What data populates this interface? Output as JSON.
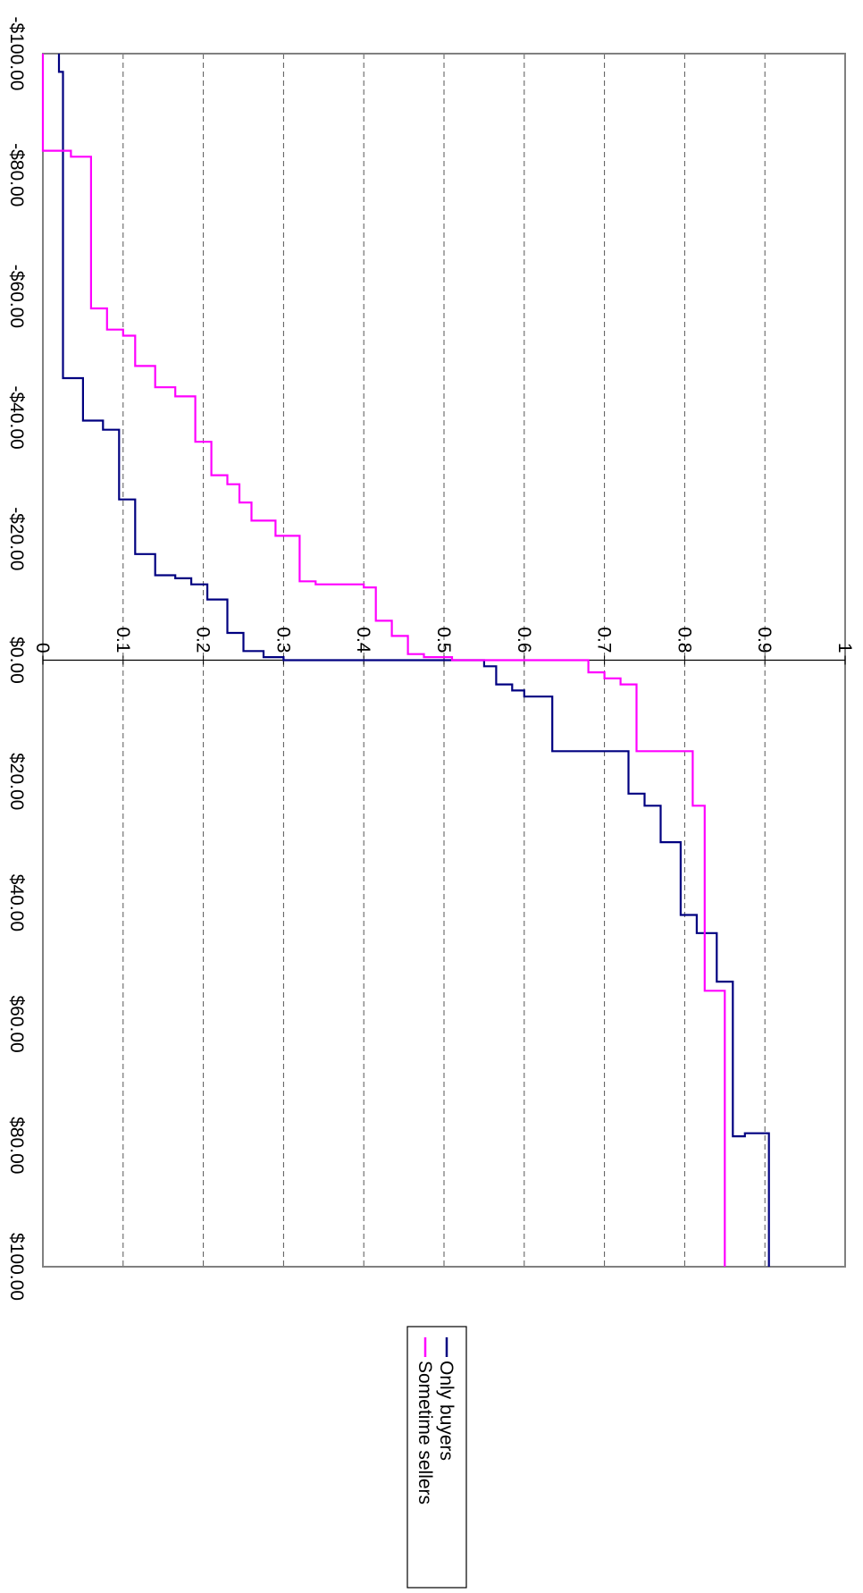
{
  "chart_data": {
    "type": "line",
    "orientation": "rotated 90 degrees clockwise",
    "x_ticks": [
      "-$100.00",
      "-$80.00",
      "-$60.00",
      "-$40.00",
      "-$20.00",
      "$0.00",
      "$20.00",
      "$40.00",
      "$60.00",
      "$80.00",
      "$100.00"
    ],
    "x_tick_values": [
      -100,
      -80,
      -60,
      -40,
      -20,
      0,
      20,
      40,
      60,
      80,
      100
    ],
    "y_ticks": [
      "0",
      "0.1",
      "0.2",
      "0.3",
      "0.4",
      "0.5",
      "0.6",
      "0.7",
      "0.8",
      "0.9",
      "1"
    ],
    "y_tick_values": [
      0,
      0.1,
      0.2,
      0.3,
      0.4,
      0.5,
      0.6,
      0.7,
      0.8,
      0.9,
      1
    ],
    "xlim": [
      -100,
      100
    ],
    "ylim": [
      0,
      1
    ],
    "grid": "dashed gridlines at y = 0.1 to 0.9",
    "legend_position": "right",
    "series": [
      {
        "name": "Only buyers",
        "color": "#000080",
        "points": [
          [
            -100,
            0.02
          ],
          [
            -97,
            0.02
          ],
          [
            -97,
            0.025
          ],
          [
            -46.5,
            0.025
          ],
          [
            -46.5,
            0.05
          ],
          [
            -39.5,
            0.05
          ],
          [
            -39.5,
            0.075
          ],
          [
            -38,
            0.075
          ],
          [
            -38,
            0.095
          ],
          [
            -26.5,
            0.095
          ],
          [
            -26.5,
            0.115
          ],
          [
            -17.5,
            0.115
          ],
          [
            -17.5,
            0.14
          ],
          [
            -14,
            0.14
          ],
          [
            -14,
            0.165
          ],
          [
            -13.5,
            0.165
          ],
          [
            -13.5,
            0.185
          ],
          [
            -12.5,
            0.185
          ],
          [
            -12.5,
            0.205
          ],
          [
            -10,
            0.205
          ],
          [
            -10,
            0.23
          ],
          [
            -4.5,
            0.23
          ],
          [
            -4.5,
            0.25
          ],
          [
            -1.5,
            0.25
          ],
          [
            -1.5,
            0.275
          ],
          [
            -0.5,
            0.275
          ],
          [
            -0.5,
            0.3
          ],
          [
            0,
            0.3
          ],
          [
            0,
            0.55
          ],
          [
            1,
            0.55
          ],
          [
            1,
            0.565
          ],
          [
            4,
            0.565
          ],
          [
            4,
            0.585
          ],
          [
            5,
            0.585
          ],
          [
            5,
            0.6
          ],
          [
            6,
            0.6
          ],
          [
            6,
            0.635
          ],
          [
            15,
            0.635
          ],
          [
            15,
            0.73
          ],
          [
            22,
            0.73
          ],
          [
            22,
            0.75
          ],
          [
            24,
            0.75
          ],
          [
            24,
            0.77
          ],
          [
            30,
            0.77
          ],
          [
            30,
            0.795
          ],
          [
            42,
            0.795
          ],
          [
            42,
            0.815
          ],
          [
            45,
            0.815
          ],
          [
            45,
            0.84
          ],
          [
            53,
            0.84
          ],
          [
            53,
            0.86
          ],
          [
            78.5,
            0.86
          ],
          [
            78.5,
            0.875
          ],
          [
            78,
            0.875
          ],
          [
            78,
            0.905
          ],
          [
            100,
            0.905
          ]
        ]
      },
      {
        "name": "Sometime sellers",
        "color": "#ff00ff",
        "points": [
          [
            -100,
            0
          ],
          [
            -84,
            0
          ],
          [
            -84,
            0.035
          ],
          [
            -83,
            0.035
          ],
          [
            -83,
            0.06
          ],
          [
            -58,
            0.06
          ],
          [
            -58,
            0.08
          ],
          [
            -54.5,
            0.08
          ],
          [
            -54.5,
            0.1
          ],
          [
            -53.5,
            0.1
          ],
          [
            -53.5,
            0.115
          ],
          [
            -48.5,
            0.115
          ],
          [
            -48.5,
            0.14
          ],
          [
            -45,
            0.14
          ],
          [
            -45,
            0.165
          ],
          [
            -43.5,
            0.165
          ],
          [
            -43.5,
            0.19
          ],
          [
            -36,
            0.19
          ],
          [
            -36,
            0.21
          ],
          [
            -30.5,
            0.21
          ],
          [
            -30.5,
            0.23
          ],
          [
            -29,
            0.23
          ],
          [
            -29,
            0.245
          ],
          [
            -26,
            0.245
          ],
          [
            -26,
            0.26
          ],
          [
            -23,
            0.26
          ],
          [
            -23,
            0.29
          ],
          [
            -20.5,
            0.29
          ],
          [
            -20.5,
            0.32
          ],
          [
            -13,
            0.32
          ],
          [
            -13,
            0.34
          ],
          [
            -12.5,
            0.34
          ],
          [
            -12.5,
            0.4
          ],
          [
            -12,
            0.4
          ],
          [
            -12,
            0.415
          ],
          [
            -6.5,
            0.415
          ],
          [
            -6.5,
            0.435
          ],
          [
            -4,
            0.435
          ],
          [
            -4,
            0.455
          ],
          [
            -1,
            0.455
          ],
          [
            -1,
            0.475
          ],
          [
            -0.5,
            0.475
          ],
          [
            -0.5,
            0.51
          ],
          [
            0,
            0.51
          ],
          [
            0,
            0.68
          ],
          [
            2,
            0.68
          ],
          [
            2,
            0.7
          ],
          [
            3,
            0.7
          ],
          [
            3,
            0.72
          ],
          [
            4,
            0.72
          ],
          [
            4,
            0.74
          ],
          [
            15,
            0.74
          ],
          [
            15,
            0.81
          ],
          [
            24,
            0.81
          ],
          [
            24,
            0.825
          ],
          [
            54.5,
            0.825
          ],
          [
            54.5,
            0.85
          ],
          [
            100,
            0.85
          ]
        ]
      }
    ]
  }
}
